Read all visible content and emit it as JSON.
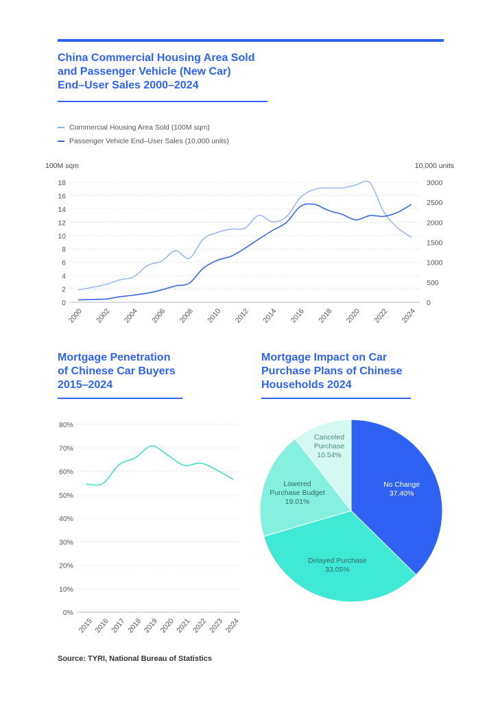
{
  "chart1": {
    "title_lines": [
      "China Commercial Housing Area Sold",
      "and Passenger Vehicle (New Car)",
      "End–User Sales 2000–2024"
    ],
    "legend": [
      "Commercial Housing Area Sold (100M sqm)",
      "Passenger Vehicle End–User Sales (10,000 units)"
    ],
    "left_unit": "100M sqm",
    "right_unit": "10,000 units",
    "colors": {
      "housing": "#8fb0f5",
      "vehicle": "#3a64e6"
    }
  },
  "chart2": {
    "title_lines": [
      "Mortgage Penetration",
      "of Chinese Car Buyers",
      "2015–2024"
    ],
    "color": "#40e0c8"
  },
  "chart3": {
    "title_lines": [
      "Mortgage Impact on Car",
      "Purchase Plans of Chinese",
      "Households 2024"
    ]
  },
  "source": "Source: TYRI, National Bureau of Statistics",
  "chart_data": [
    {
      "type": "line",
      "x": [
        2000,
        2001,
        2002,
        2003,
        2004,
        2005,
        2006,
        2007,
        2008,
        2009,
        2010,
        2011,
        2012,
        2013,
        2014,
        2015,
        2016,
        2017,
        2018,
        2019,
        2020,
        2021,
        2022,
        2023,
        2024
      ],
      "xticks": [
        "2000",
        "2002",
        "2004",
        "2006",
        "2008",
        "2010",
        "2012",
        "2014",
        "2016",
        "2018",
        "2020",
        "2022",
        "2024"
      ],
      "series": [
        {
          "name": "Commercial Housing Area Sold (100M sqm)",
          "axis": "left",
          "values": [
            1.86,
            2.24,
            2.68,
            3.37,
            3.82,
            5.55,
            6.19,
            7.74,
            6.6,
            9.48,
            10.47,
            10.99,
            11.13,
            13.06,
            12.06,
            12.85,
            15.73,
            16.94,
            17.17,
            17.16,
            17.61,
            17.94,
            13.58,
            11.17,
            9.73
          ]
        },
        {
          "name": "Passenger Vehicle End–User Sales (10,000 units)",
          "axis": "right",
          "values": [
            60,
            72,
            83,
            140,
            180,
            230,
            310,
            410,
            480,
            850,
            1050,
            1150,
            1350,
            1580,
            1800,
            2000,
            2400,
            2450,
            2300,
            2200,
            2060,
            2170,
            2150,
            2250,
            2450
          ]
        }
      ],
      "ylim_left": [
        0,
        18
      ],
      "yticks_left": [
        0,
        2,
        4,
        6,
        8,
        10,
        12,
        14,
        16,
        18
      ],
      "ylim_right": [
        0,
        3000
      ],
      "yticks_right": [
        0,
        500,
        1000,
        1500,
        2000,
        2500,
        3000
      ],
      "grid": true
    },
    {
      "type": "line",
      "x": [
        "2015",
        "2016",
        "2017",
        "2018",
        "2019",
        "2020",
        "2021",
        "2022",
        "2023",
        "2024"
      ],
      "values": [
        54.5,
        54.8,
        62.8,
        65.8,
        70.8,
        66.8,
        62.5,
        63.5,
        60.5,
        56.5
      ],
      "ylim": [
        0,
        80
      ],
      "yticks": [
        "0%",
        "10%",
        "20%",
        "30%",
        "40%",
        "50%",
        "60%",
        "70%",
        "80%"
      ],
      "grid": true
    },
    {
      "type": "pie",
      "slices": [
        {
          "label": "No Change",
          "value": 37.4,
          "display": "37.40%",
          "color": "#2f62f3"
        },
        {
          "label": "Delayed Purchase",
          "value": 33.05,
          "display": "33.05%",
          "color": "#40e8d6"
        },
        {
          "label": "Lowered\nPurchase Budget",
          "value": 19.01,
          "display": "19.01%",
          "color": "#86f0de"
        },
        {
          "label": "Canceled\nPurchase",
          "value": 10.54,
          "display": "10.54%",
          "color": "#d3f9f2"
        }
      ]
    }
  ]
}
